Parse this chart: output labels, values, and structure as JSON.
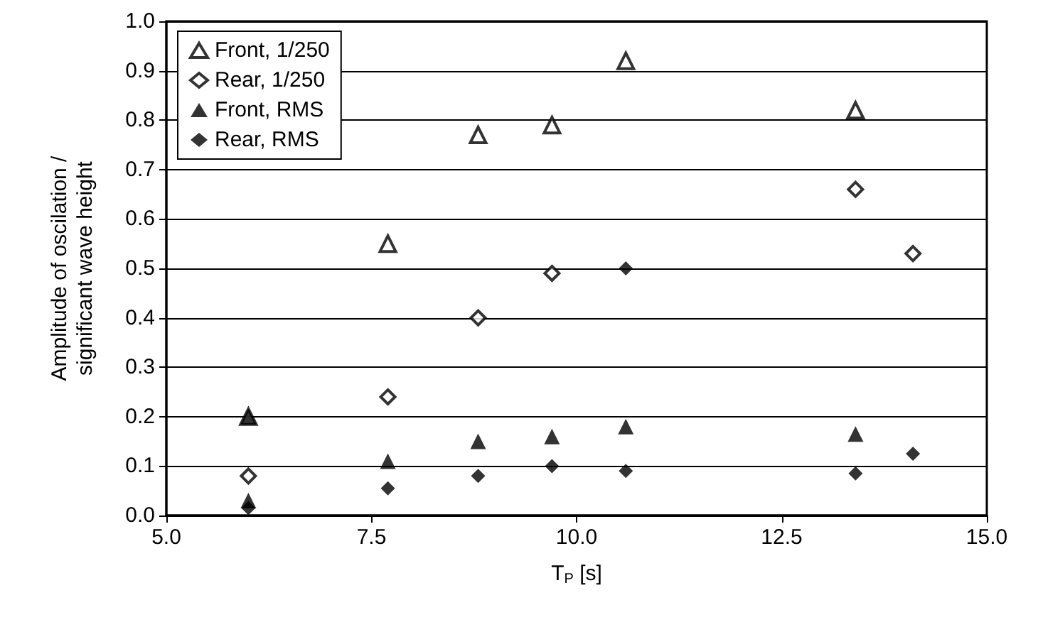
{
  "chart_data": {
    "type": "scatter",
    "xlabel": "T$_{P}$ [s]",
    "ylabel": "Amplitude of oscilation /\nsignificant wave height",
    "series": [
      {
        "name": "Front, 1/250",
        "color": "#ffffff",
        "marker": "triangle",
        "x": [
          6.0,
          7.7,
          8.8,
          9.7,
          10.6,
          13.4
        ],
        "values": [
          0.2,
          0.55,
          0.77,
          0.79,
          0.92,
          0.82
        ]
      },
      {
        "name": "Rear, 1/250",
        "color": "#ffffff",
        "marker": "diamond",
        "x": [
          6.0,
          7.7,
          8.8,
          9.7,
          13.4,
          14.1
        ],
        "values": [
          0.08,
          0.24,
          0.4,
          0.49,
          0.66,
          0.53
        ]
      },
      {
        "name": "Front, RMS",
        "color": "#000000",
        "marker": "triangle",
        "x": [
          6.0,
          6.0,
          7.7,
          8.8,
          9.7,
          10.6,
          13.4
        ],
        "values": [
          0.2,
          0.03,
          0.11,
          0.15,
          0.16,
          0.18,
          0.165
        ]
      },
      {
        "name": "Rear, RMS",
        "color": "#000000",
        "marker": "diamond",
        "x": [
          6.0,
          7.7,
          8.8,
          9.7,
          10.6,
          10.6,
          13.4,
          14.1
        ],
        "values": [
          0.015,
          0.055,
          0.08,
          0.1,
          0.5,
          0.09,
          0.085,
          0.125
        ]
      }
    ],
    "xlim": [
      5.0,
      15.0
    ],
    "xticks": [
      {
        "value": 5,
        "label": "5.0"
      },
      {
        "value": 7.5,
        "label": "7.5"
      },
      {
        "value": 10,
        "label": "10.0"
      },
      {
        "value": 12.5,
        "label": "12.5"
      },
      {
        "value": 15,
        "label": "15.0"
      }
    ],
    "ylim": [
      0,
      1.0
    ],
    "yticks": [
      {
        "value": 0,
        "label": "0.0"
      },
      {
        "value": 0.1,
        "label": "0.1"
      },
      {
        "value": 0.2,
        "label": "0.2"
      },
      {
        "value": 0.3,
        "label": "0.3"
      },
      {
        "value": 0.4,
        "label": "0.4"
      },
      {
        "value": 0.5,
        "label": "0.5"
      },
      {
        "value": 0.6,
        "label": "0.6"
      },
      {
        "value": 0.7,
        "label": "0.7"
      },
      {
        "value": 0.8,
        "label": "0.8"
      },
      {
        "value": 0.9,
        "label": "0.9"
      },
      {
        "value": 1.0,
        "label": "1.0"
      }
    ],
    "grid": "y",
    "legend": "top left"
  }
}
